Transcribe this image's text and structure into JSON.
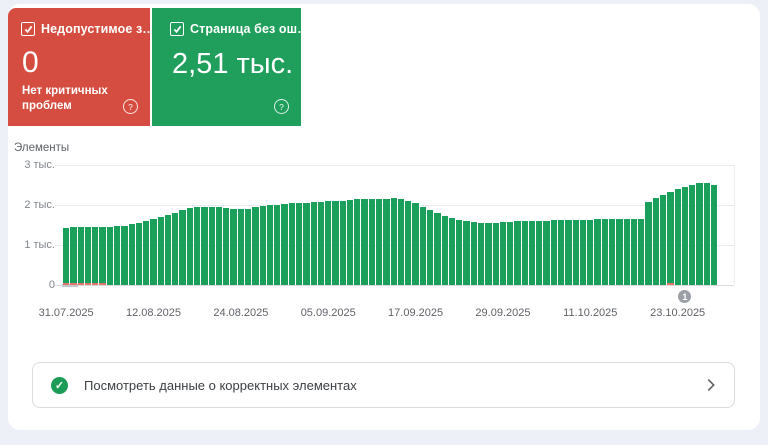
{
  "summary_cards": {
    "error_card": {
      "label": "Недопустимое з…",
      "value": "0",
      "subtitle": "Нет критичных проблем",
      "color": "#d54d40",
      "help_glyph": "?"
    },
    "valid_card": {
      "label": "Страница без ош…",
      "value": "2,51 тыс.",
      "color": "#1f9e5c",
      "help_glyph": "?"
    }
  },
  "chart_data": {
    "type": "bar",
    "title": "Элементы",
    "ylim": [
      0,
      3000
    ],
    "ytick_labels": [
      "3 тыс.",
      "2 тыс.",
      "1 тыс.",
      "0"
    ],
    "grid": true,
    "legend": "none",
    "bar_color": "#1aa05b",
    "error_color": "#e2766a",
    "xticks": [
      {
        "index": 0,
        "label": "31.07.2025"
      },
      {
        "index": 12,
        "label": "12.08.2025"
      },
      {
        "index": 24,
        "label": "24.08.2025"
      },
      {
        "index": 36,
        "label": "05.09.2025"
      },
      {
        "index": 48,
        "label": "17.09.2025"
      },
      {
        "index": 60,
        "label": "29.09.2025"
      },
      {
        "index": 72,
        "label": "11.10.2025"
      },
      {
        "index": 84,
        "label": "23.10.2025"
      }
    ],
    "values": [
      1430,
      1440,
      1445,
      1450,
      1450,
      1455,
      1460,
      1465,
      1470,
      1520,
      1560,
      1600,
      1645,
      1695,
      1750,
      1810,
      1865,
      1920,
      1940,
      1950,
      1960,
      1960,
      1930,
      1910,
      1890,
      1900,
      1950,
      1980,
      2000,
      2010,
      2020,
      2040,
      2050,
      2060,
      2070,
      2080,
      2090,
      2100,
      2110,
      2130,
      2140,
      2150,
      2150,
      2160,
      2160,
      2170,
      2150,
      2100,
      2040,
      1960,
      1880,
      1800,
      1730,
      1670,
      1620,
      1590,
      1570,
      1560,
      1555,
      1560,
      1570,
      1580,
      1590,
      1600,
      1600,
      1610,
      1610,
      1620,
      1620,
      1620,
      1630,
      1630,
      1630,
      1640,
      1640,
      1640,
      1650,
      1650,
      1660,
      1660,
      2080,
      2170,
      2260,
      2330,
      2400,
      2460,
      2500,
      2540,
      2560,
      2510
    ],
    "error_segments": [
      {
        "index": 0,
        "value": 50
      },
      {
        "index": 1,
        "value": 50
      },
      {
        "index": 2,
        "value": 50
      },
      {
        "index": 3,
        "value": 50
      },
      {
        "index": 4,
        "value": 50
      },
      {
        "index": 5,
        "value": 50
      },
      {
        "index": 83,
        "value": 50
      }
    ],
    "marker": {
      "index": 85,
      "label": "1"
    }
  },
  "footer": {
    "link_text": "Посмотреть данные о корректных элементах"
  }
}
